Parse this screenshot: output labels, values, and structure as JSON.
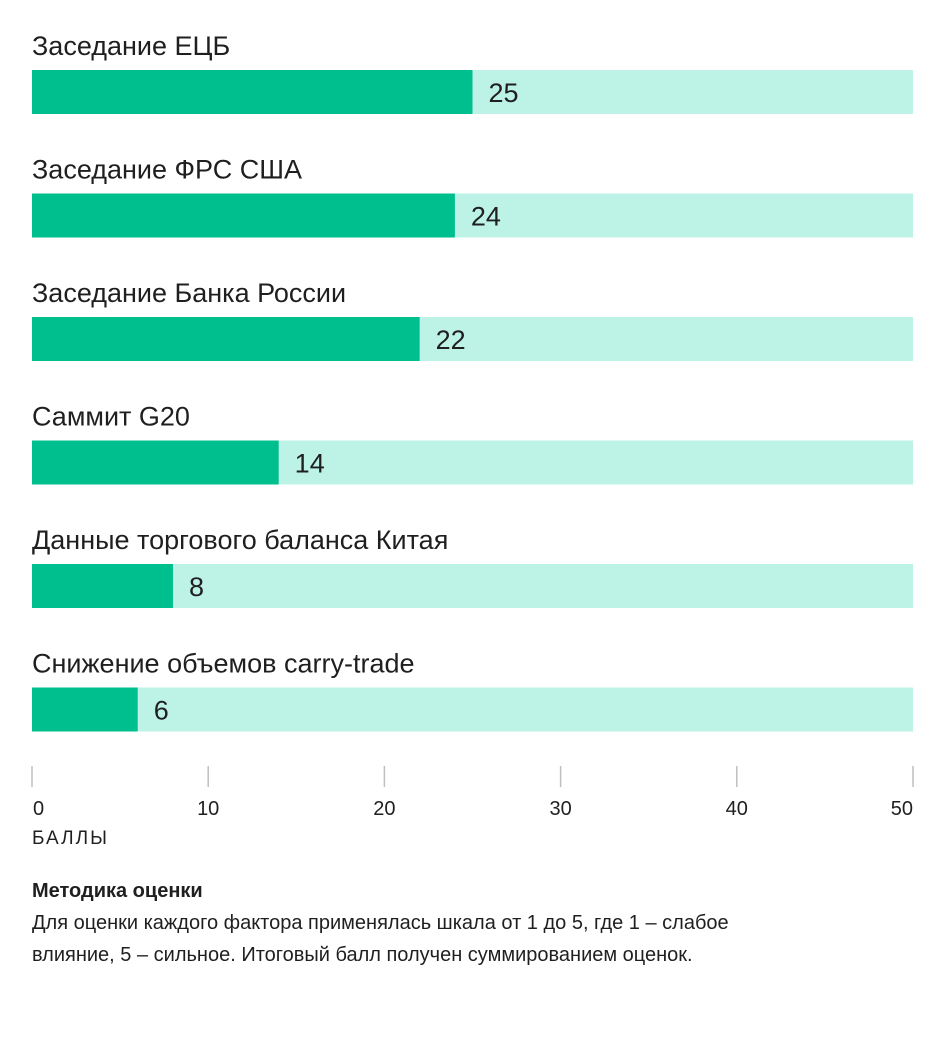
{
  "colors": {
    "bar": "#00bf8f",
    "track": "#bdf2e6",
    "axis": "#bfbfbf"
  },
  "chart_data": {
    "type": "bar",
    "orientation": "horizontal",
    "categories": [
      "Заседание ЕЦБ",
      "Заседание ФРС США",
      "Заседание Банка России",
      "Саммит G20",
      "Данные торгового баланса Китая",
      "Снижение объемов carry-trade"
    ],
    "values": [
      25,
      24,
      22,
      14,
      8,
      6
    ],
    "xlim": [
      0,
      50
    ],
    "xticks": [
      0,
      10,
      20,
      30,
      40,
      50
    ],
    "xlabel": "БАЛЛЫ",
    "grid": false
  },
  "methodology": {
    "title": "Методика оценки",
    "text": "Для оценки каждого фактора применялась шкала от 1 до 5, где 1 – слабое влияние, 5 – сильное. Итоговый балл получен суммированием оценок."
  }
}
